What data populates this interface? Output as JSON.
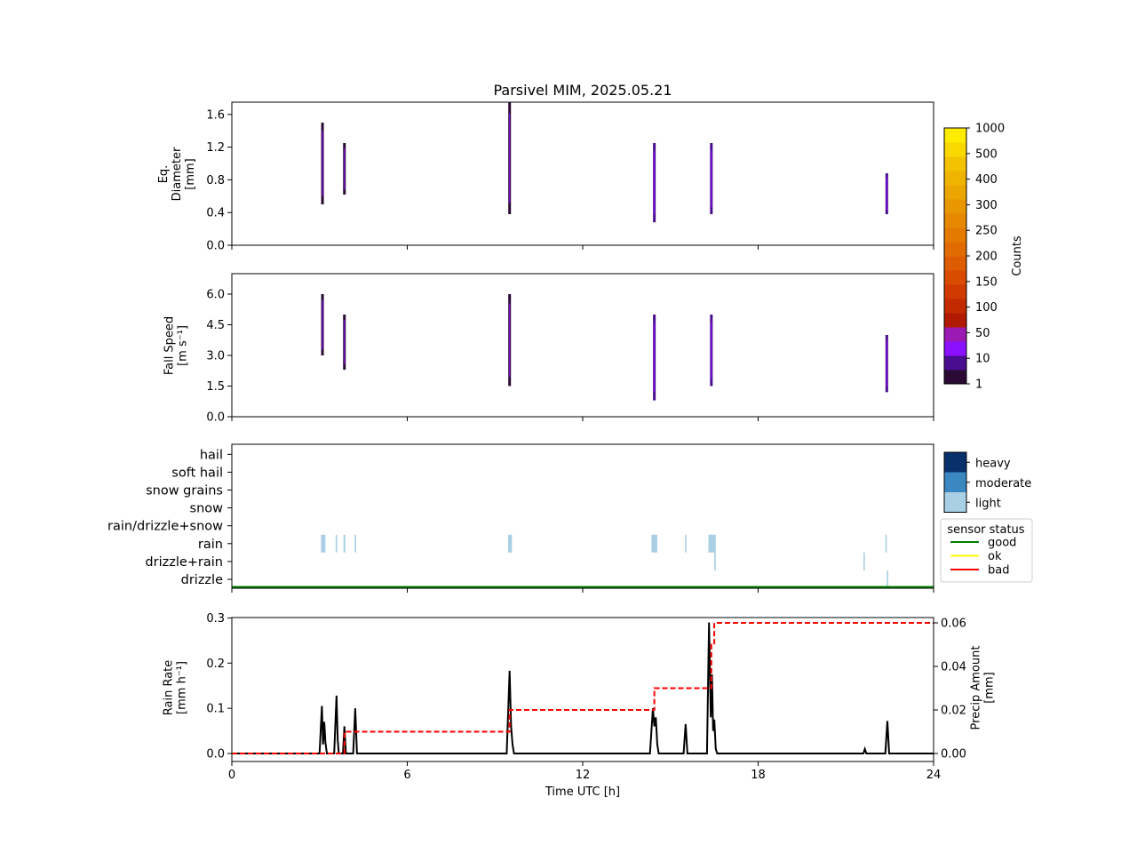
{
  "title": "Parsivel MIM, 2025.05.21",
  "xaxis": {
    "label": "Time UTC [h]",
    "ticks": [
      "0",
      "6",
      "12",
      "18",
      "24"
    ],
    "range": [
      0,
      24
    ]
  },
  "panel1": {
    "ylabel": [
      "Eq.",
      "Diameter",
      "[mm]"
    ],
    "ticks": [
      "0.0",
      "0.4",
      "0.8",
      "1.2",
      "1.6"
    ],
    "ylim": [
      0,
      1.75
    ]
  },
  "panel2": {
    "ylabel": [
      "Fall Speed",
      "[m s⁻¹]"
    ],
    "ticks": [
      "0.0",
      "1.5",
      "3.0",
      "4.5",
      "6.0"
    ],
    "ylim": [
      0,
      7.0
    ]
  },
  "panel3": {
    "categories": [
      "drizzle",
      "drizzle+rain",
      "rain",
      "rain/drizzle+snow",
      "snow",
      "snow grains",
      "soft hail",
      "hail"
    ]
  },
  "panel4": {
    "ylabel": [
      "Rain Rate",
      "[mm h⁻¹]"
    ],
    "ylabel2": [
      "Precip Amount",
      "[mm]"
    ],
    "ticks": [
      "0.0",
      "0.1",
      "0.2",
      "0.3"
    ],
    "ticks2": [
      "0.00",
      "0.02",
      "0.04",
      "0.06"
    ],
    "ylim": [
      0,
      0.3
    ],
    "ylim2": [
      0,
      0.06
    ]
  },
  "counts_colorbar": {
    "label": "Counts",
    "ticks": [
      "1",
      "10",
      "50",
      "100",
      "150",
      "200",
      "250",
      "300",
      "400",
      "500",
      "1000"
    ],
    "colors": [
      "#2a0a33",
      "#4b0d8f",
      "#8b10ff",
      "#9a1ab3",
      "#b01a00",
      "#c42a00",
      "#cf3a00",
      "#d84b00",
      "#de5c00",
      "#e26b00",
      "#e47a00",
      "#e68900",
      "#e99700",
      "#eba600",
      "#efb400",
      "#f3c200",
      "#f9d800",
      "#ffec00"
    ]
  },
  "intensity_legend": {
    "items": [
      {
        "label": "heavy",
        "color": "#08306b"
      },
      {
        "label": "moderate",
        "color": "#3a87c2"
      },
      {
        "label": "light",
        "color": "#a9cfe5"
      }
    ]
  },
  "status_legend": {
    "title": "sensor status",
    "items": [
      {
        "label": "good",
        "color": "#008000"
      },
      {
        "label": "ok",
        "color": "#ffff00"
      },
      {
        "label": "bad",
        "color": "#ff0000"
      }
    ]
  },
  "chart_data": [
    {
      "type": "heatmap",
      "title": "Parsivel MIM, 2025.05.21",
      "xlabel": "",
      "ylabel": "Eq. Diameter [mm]",
      "xlim": [
        0,
        24
      ],
      "ylim": [
        0,
        1.75
      ],
      "events": [
        {
          "x": 3.1,
          "y": [
            0.5,
            1.5
          ],
          "counts": 5
        },
        {
          "x": 3.85,
          "y": [
            0.62,
            1.25
          ],
          "counts": 5
        },
        {
          "x": 9.5,
          "y": [
            0.38,
            1.75
          ],
          "counts": 5
        },
        {
          "x": 14.45,
          "y": [
            0.28,
            1.25
          ],
          "counts": 10
        },
        {
          "x": 16.4,
          "y": [
            0.38,
            1.25
          ],
          "counts": 10
        },
        {
          "x": 22.4,
          "y": [
            0.38,
            0.88
          ],
          "counts": 10
        }
      ]
    },
    {
      "type": "heatmap",
      "xlabel": "",
      "ylabel": "Fall Speed [m s⁻¹]",
      "xlim": [
        0,
        24
      ],
      "ylim": [
        0,
        7.0
      ],
      "events": [
        {
          "x": 3.1,
          "y": [
            3.0,
            6.0
          ],
          "counts": 5
        },
        {
          "x": 3.85,
          "y": [
            2.3,
            5.0
          ],
          "counts": 5
        },
        {
          "x": 9.5,
          "y": [
            1.5,
            6.0
          ],
          "counts": 5
        },
        {
          "x": 14.45,
          "y": [
            0.8,
            5.0
          ],
          "counts": 10
        },
        {
          "x": 16.4,
          "y": [
            1.5,
            5.0
          ],
          "counts": 10
        },
        {
          "x": 22.4,
          "y": [
            1.2,
            4.0
          ],
          "counts": 10
        }
      ]
    },
    {
      "type": "bar",
      "xlabel": "",
      "ylabel": "",
      "xlim": [
        0,
        24
      ],
      "categories": [
        "drizzle",
        "drizzle+rain",
        "rain",
        "rain/drizzle+snow",
        "snow",
        "snow grains",
        "soft hail",
        "hail"
      ],
      "segments": [
        {
          "x": [
            3.05,
            3.2
          ],
          "category": "rain",
          "intensity": "light"
        },
        {
          "x": [
            3.55,
            3.6
          ],
          "category": "rain",
          "intensity": "light"
        },
        {
          "x": [
            3.82,
            3.88
          ],
          "category": "rain",
          "intensity": "light"
        },
        {
          "x": [
            4.2,
            4.25
          ],
          "category": "rain",
          "intensity": "light"
        },
        {
          "x": [
            9.45,
            9.58
          ],
          "category": "rain",
          "intensity": "light"
        },
        {
          "x": [
            14.35,
            14.55
          ],
          "category": "rain",
          "intensity": "light"
        },
        {
          "x": [
            15.5,
            15.55
          ],
          "category": "rain",
          "intensity": "light"
        },
        {
          "x": [
            16.3,
            16.55
          ],
          "category": "rain",
          "intensity": "light"
        },
        {
          "x": [
            16.5,
            16.55
          ],
          "category": "drizzle+rain",
          "intensity": "light"
        },
        {
          "x": [
            21.6,
            21.65
          ],
          "category": "drizzle+rain",
          "intensity": "light"
        },
        {
          "x": [
            22.35,
            22.4
          ],
          "category": "rain",
          "intensity": "light"
        },
        {
          "x": [
            22.4,
            22.45
          ],
          "category": "drizzle",
          "intensity": "light"
        }
      ],
      "sensor_status": {
        "x": [
          0,
          24
        ],
        "value": "good"
      }
    },
    {
      "type": "line",
      "xlabel": "Time UTC [h]",
      "ylabel": "Rain Rate [mm h⁻¹]",
      "ylabel2": "Precip Amount [mm]",
      "xlim": [
        0,
        24
      ],
      "ylim": [
        0,
        0.3
      ],
      "ylim2": [
        0,
        0.06
      ],
      "series": [
        {
          "x": [
            0,
            3.0,
            3.08,
            3.12,
            3.16,
            3.2,
            3.25,
            3.3,
            3.5,
            3.58,
            3.62,
            3.66,
            3.8,
            3.85,
            3.9,
            4.15,
            4.22,
            4.28,
            9.4,
            9.5,
            9.55,
            9.6,
            9.65,
            14.3,
            14.4,
            14.45,
            14.5,
            14.55,
            14.6,
            15.45,
            15.52,
            15.58,
            16.25,
            16.32,
            16.38,
            16.42,
            16.46,
            16.5,
            16.55,
            16.6,
            21.6,
            21.65,
            21.7,
            22.35,
            22.42,
            22.48,
            24
          ],
          "values": [
            0,
            0,
            0.105,
            0.02,
            0.07,
            0.025,
            0,
            0,
            0,
            0.128,
            0.03,
            0,
            0,
            0.06,
            0,
            0,
            0.1,
            0,
            0,
            0.183,
            0.06,
            0.02,
            0,
            0,
            0.1,
            0.06,
            0.08,
            0.02,
            0,
            0,
            0.065,
            0,
            0,
            0.29,
            0.08,
            0.175,
            0.05,
            0.075,
            0.01,
            0,
            0,
            0.01,
            0,
            0,
            0.072,
            0,
            0
          ]
        },
        {
          "axis": "right",
          "x": [
            0,
            3.85,
            3.85,
            9.5,
            9.5,
            14.45,
            14.45,
            16.4,
            16.4,
            16.5,
            16.5,
            24
          ],
          "values": [
            0,
            0,
            0.01,
            0.01,
            0.02,
            0.02,
            0.03,
            0.03,
            0.05,
            0.05,
            0.06,
            0.06
          ]
        }
      ]
    }
  ]
}
